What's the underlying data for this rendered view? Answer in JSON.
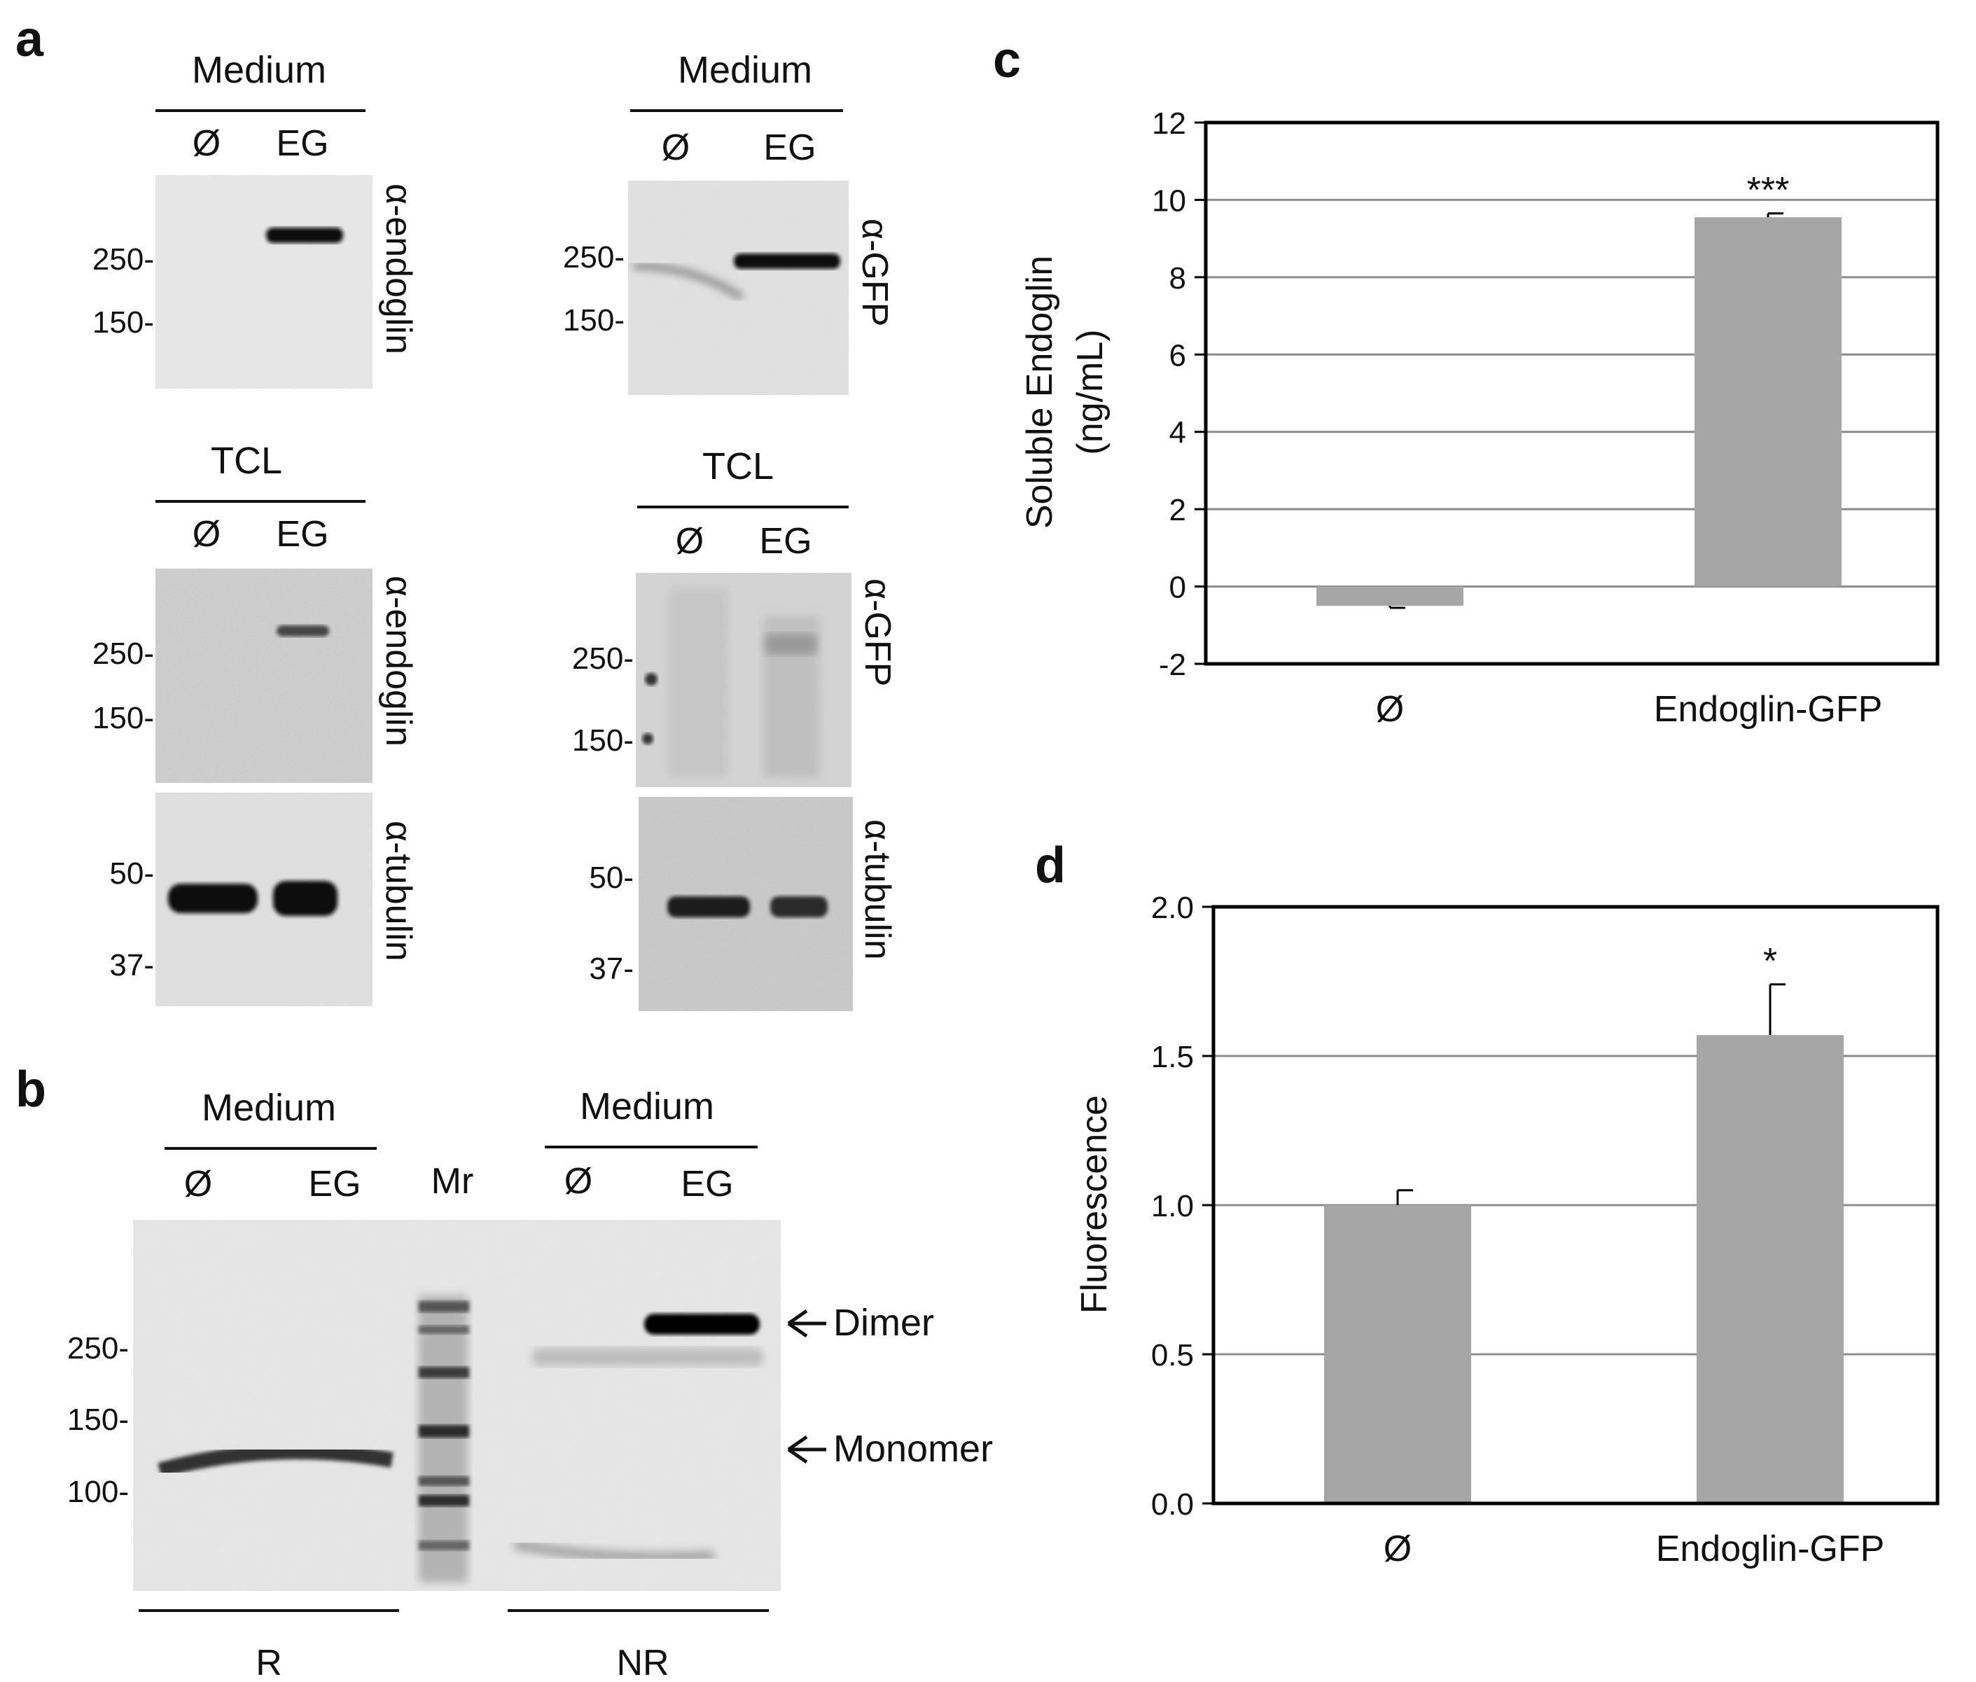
{
  "panel_labels": {
    "a": "a",
    "b": "b",
    "c": "c",
    "d": "d"
  },
  "panel_a": {
    "blots": [
      {
        "group": "Medium",
        "lanes": [
          "Ø",
          "EG"
        ],
        "antibody": "α-endoglin",
        "markers": [
          "250-",
          "150-"
        ]
      },
      {
        "group": "Medium",
        "lanes": [
          "Ø",
          "EG"
        ],
        "antibody": "α-GFP",
        "markers": [
          "250-",
          "150-"
        ]
      },
      {
        "group": "TCL",
        "lanes": [
          "Ø",
          "EG"
        ],
        "antibody": "α-endoglin",
        "markers": [
          "250-",
          "150-"
        ],
        "loading_antibody": "α-tubulin",
        "loading_markers": [
          "50-",
          "37-"
        ]
      },
      {
        "group": "TCL",
        "lanes": [
          "Ø",
          "EG"
        ],
        "antibody": "α-GFP",
        "markers": [
          "250-",
          "150-"
        ],
        "loading_antibody": "α-tubulin",
        "loading_markers": [
          "50-",
          "37-"
        ]
      }
    ]
  },
  "panel_b": {
    "left_group": "Medium",
    "right_group": "Medium",
    "lanes": [
      "Ø",
      "EG",
      "Mr",
      "Ø",
      "EG"
    ],
    "markers": [
      "250-",
      "150-",
      "100-"
    ],
    "arrows": [
      "Dimer",
      "Monomer"
    ],
    "conditions": [
      "R",
      "NR"
    ]
  },
  "chart_data": [
    {
      "type": "bar",
      "panel": "c",
      "categories": [
        "Ø",
        "Endoglin-GFP"
      ],
      "values": [
        -0.5,
        9.55
      ],
      "errors": [
        0.05,
        0.1
      ],
      "significance": [
        "",
        "***"
      ],
      "ylabel_line1": "Soluble  Endoglin",
      "ylabel_line2": "(ng/mL)",
      "xlabel": "",
      "ylim": [
        -2,
        12
      ],
      "yticks": [
        "-2",
        "0",
        "2",
        "4",
        "6",
        "8",
        "10",
        "12"
      ],
      "grid": true,
      "bar_color": "#a6a6a6"
    },
    {
      "type": "bar",
      "panel": "d",
      "categories": [
        "Ø",
        "Endoglin-GFP"
      ],
      "values": [
        1.0,
        1.57
      ],
      "errors": [
        0.05,
        0.17
      ],
      "significance": [
        "",
        "*"
      ],
      "ylabel": "Fluorescence",
      "xlabel": "",
      "ylim": [
        0,
        2
      ],
      "yticks": [
        "0.0",
        "0.5",
        "1.0",
        "1.5",
        "2.0"
      ],
      "grid": true,
      "bar_color": "#a6a6a6"
    }
  ]
}
